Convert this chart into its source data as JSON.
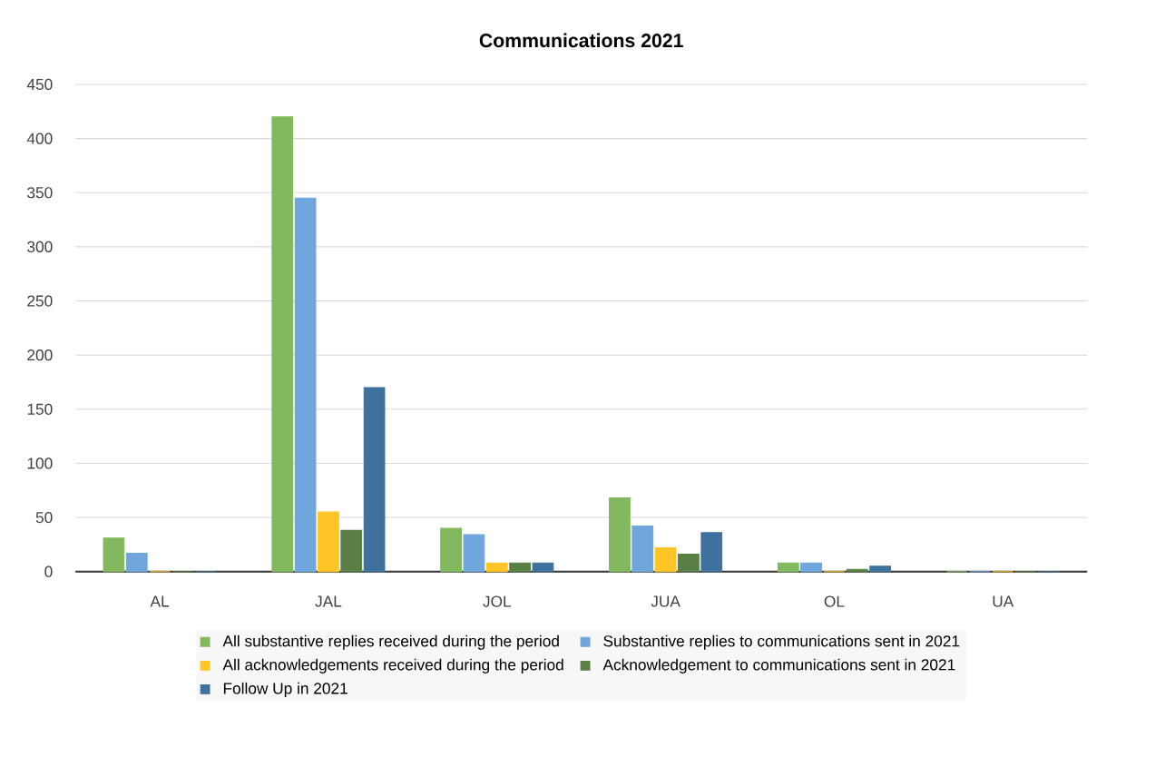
{
  "chart_data": {
    "type": "bar",
    "title": "Communications 2021",
    "categories": [
      "AL",
      "JAL",
      "JOL",
      "JUA",
      "OL",
      "UA"
    ],
    "series": [
      {
        "name": "All substantive replies received during the period",
        "color": "#82b85e",
        "values": [
          31,
          420,
          40,
          68,
          8,
          0
        ]
      },
      {
        "name": "Substantive replies to communications sent in 2021",
        "color": "#6fa6dc",
        "values": [
          17,
          345,
          34,
          42,
          8,
          0
        ]
      },
      {
        "name": "All acknowledgements received during the period",
        "color": "#ffc527",
        "values": [
          0,
          55,
          8,
          22,
          0,
          0
        ]
      },
      {
        "name": "Acknowledgement to communications sent in 2021",
        "color": "#5a7f46",
        "values": [
          0,
          38,
          8,
          16,
          2,
          0
        ]
      },
      {
        "name": "Follow Up in 2021",
        "color": "#3f719f",
        "values": [
          0,
          170,
          8,
          36,
          5,
          0
        ]
      }
    ],
    "ylim": [
      0,
      450
    ],
    "yticks": [
      0,
      50,
      100,
      150,
      200,
      250,
      300,
      350,
      400,
      450
    ],
    "grid": "y",
    "legend": "bottom"
  }
}
